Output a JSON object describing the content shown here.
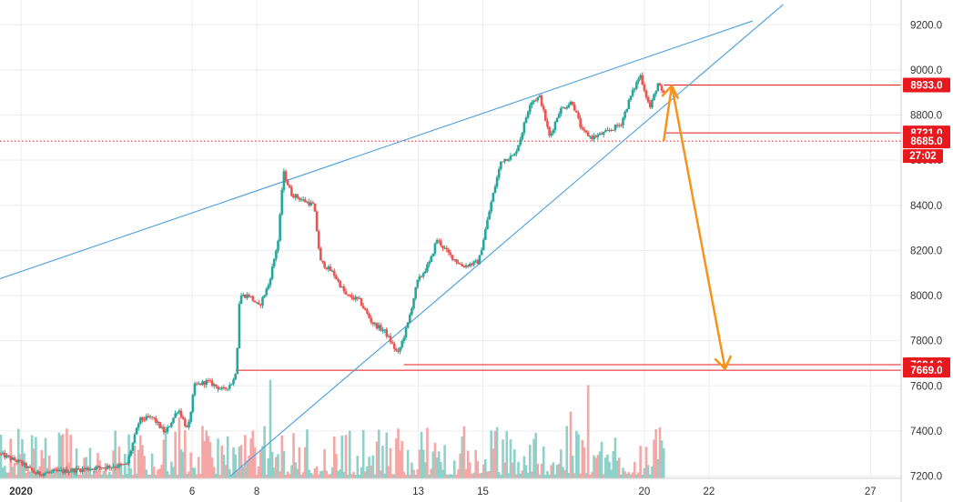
{
  "chart_data": {
    "type": "candlestick",
    "y_axis": {
      "ticks": [
        7200,
        7400,
        7600,
        7800,
        8000,
        8200,
        8400,
        8600,
        8800,
        9000,
        9200
      ],
      "tick_labels": [
        "7200.0",
        "7400.0",
        "7600.0",
        "7800.0",
        "8000.0",
        "8200.0",
        "8400.0",
        "8600.0",
        "8800.0",
        "9000.0",
        "9200.0"
      ],
      "ylim": [
        7190,
        9310
      ],
      "position": "right"
    },
    "x_axis": {
      "ticks": [
        {
          "label": "2020",
          "day": 0.7
        },
        {
          "label": "6",
          "day": 6
        },
        {
          "label": "8",
          "day": 8
        },
        {
          "label": "13",
          "day": 13
        },
        {
          "label": "15",
          "day": 15
        },
        {
          "label": "20",
          "day": 20
        },
        {
          "label": "22",
          "day": 22
        },
        {
          "label": "27",
          "day": 27
        }
      ],
      "xlim": [
        0.05,
        27.95
      ],
      "unit": "day of January 2020"
    },
    "price_path": [
      {
        "d": 0.05,
        "p": 7300
      },
      {
        "d": 0.7,
        "p": 7260
      },
      {
        "d": 1.2,
        "p": 7210
      },
      {
        "d": 4.0,
        "p": 7250
      },
      {
        "d": 4.4,
        "p": 7450
      },
      {
        "d": 4.8,
        "p": 7460
      },
      {
        "d": 5.2,
        "p": 7390
      },
      {
        "d": 5.6,
        "p": 7500
      },
      {
        "d": 5.9,
        "p": 7400
      },
      {
        "d": 6.1,
        "p": 7600
      },
      {
        "d": 6.5,
        "p": 7620
      },
      {
        "d": 7.0,
        "p": 7580
      },
      {
        "d": 7.3,
        "p": 7620
      },
      {
        "d": 7.4,
        "p": 7680
      },
      {
        "d": 7.5,
        "p": 8000
      },
      {
        "d": 7.8,
        "p": 8000
      },
      {
        "d": 8.1,
        "p": 7950
      },
      {
        "d": 8.4,
        "p": 8050
      },
      {
        "d": 8.7,
        "p": 8250
      },
      {
        "d": 8.85,
        "p": 8550
      },
      {
        "d": 9.1,
        "p": 8450
      },
      {
        "d": 9.5,
        "p": 8420
      },
      {
        "d": 9.8,
        "p": 8400
      },
      {
        "d": 10.0,
        "p": 8150
      },
      {
        "d": 10.4,
        "p": 8100
      },
      {
        "d": 10.8,
        "p": 8000
      },
      {
        "d": 11.2,
        "p": 7980
      },
      {
        "d": 11.6,
        "p": 7880
      },
      {
        "d": 12.0,
        "p": 7840
      },
      {
        "d": 12.4,
        "p": 7740
      },
      {
        "d": 12.7,
        "p": 7870
      },
      {
        "d": 13.0,
        "p": 8060
      },
      {
        "d": 13.4,
        "p": 8150
      },
      {
        "d": 13.6,
        "p": 8250
      },
      {
        "d": 14.0,
        "p": 8180
      },
      {
        "d": 14.4,
        "p": 8130
      },
      {
        "d": 14.9,
        "p": 8150
      },
      {
        "d": 15.3,
        "p": 8420
      },
      {
        "d": 15.6,
        "p": 8600
      },
      {
        "d": 16.0,
        "p": 8620
      },
      {
        "d": 16.2,
        "p": 8700
      },
      {
        "d": 16.5,
        "p": 8860
      },
      {
        "d": 16.8,
        "p": 8880
      },
      {
        "d": 17.1,
        "p": 8700
      },
      {
        "d": 17.4,
        "p": 8820
      },
      {
        "d": 17.8,
        "p": 8860
      },
      {
        "d": 18.1,
        "p": 8730
      },
      {
        "d": 18.4,
        "p": 8700
      },
      {
        "d": 18.8,
        "p": 8720
      },
      {
        "d": 19.3,
        "p": 8760
      },
      {
        "d": 19.6,
        "p": 8880
      },
      {
        "d": 19.9,
        "p": 8980
      },
      {
        "d": 20.2,
        "p": 8830
      },
      {
        "d": 20.45,
        "p": 8940
      },
      {
        "d": 20.6,
        "p": 8890
      }
    ],
    "volume_bars": "decorative volume histogram along the bottom edge (no printed values)",
    "trendlines": [
      {
        "name": "upper",
        "from": {
          "d": 0.05,
          "p": 8075
        },
        "to": {
          "d": 23.35,
          "p": 9217
        },
        "color": "#4a9fdf"
      },
      {
        "name": "lower",
        "from": {
          "d": 7.18,
          "p": 7200
        },
        "to": {
          "d": 24.3,
          "p": 9290
        },
        "color": "#4a9fdf"
      }
    ],
    "horizontal_levels": [
      {
        "value": 8933.0,
        "label": "8933.0",
        "from_d": 20.6,
        "color": "#e8191e",
        "style": "solid"
      },
      {
        "value": 8721.0,
        "label": "8721.0",
        "from_d": 20.6,
        "color": "#e8191e",
        "style": "solid"
      },
      {
        "value": 8685.0,
        "label": "8685.0",
        "from_d": 0.05,
        "color": "#e8191e",
        "style": "dotted"
      },
      {
        "value": 7694.0,
        "label": "7694.0",
        "from_d": 12.55,
        "color": "#e8191e",
        "style": "solid"
      },
      {
        "value": 7669.0,
        "label": "7669.0",
        "from_d": 7.35,
        "color": "#e8191e",
        "style": "solid"
      }
    ],
    "arrow": {
      "color": "#f7931a",
      "points": [
        {
          "d": 20.6,
          "p": 8685
        },
        {
          "d": 20.85,
          "p": 8930
        },
        {
          "d": 22.5,
          "p": 7675
        }
      ]
    },
    "countdown": "27:02",
    "grid": true,
    "legend": "none"
  },
  "colors": {
    "background": "#ffffff",
    "grid": "#ededed",
    "up_candle": "#26a69a",
    "down_candle": "#ef5350",
    "up_volume": "#8fd1c9",
    "down_volume": "#f5a7a5",
    "axis_text": "#333333",
    "label_badge": "#e8191e"
  }
}
